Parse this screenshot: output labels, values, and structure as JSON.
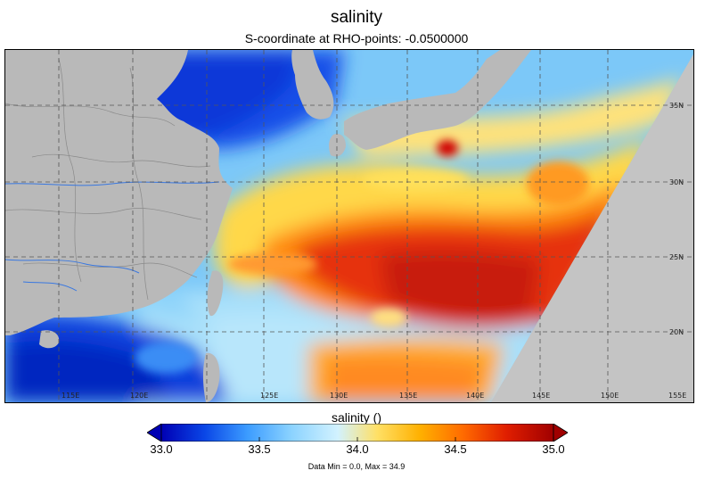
{
  "title": "salinity",
  "subtitle": "S-coordinate at RHO-points: -0.0500000",
  "map": {
    "lon_labels": [
      "115E",
      "120E",
      "125E",
      "130E",
      "135E",
      "140E",
      "145E",
      "150E",
      "155E"
    ],
    "lat_labels": [
      "35N",
      "30N",
      "25N",
      "20N"
    ]
  },
  "colorbar": {
    "title": "salinity ()",
    "ticks": [
      "33.0",
      "33.5",
      "34.0",
      "34.5",
      "35.0"
    ],
    "min": 33.0,
    "max": 35.0,
    "colors": [
      "#0000b4",
      "#0a46e6",
      "#3c9cff",
      "#8ad2ff",
      "#d2f2ff",
      "#ffe066",
      "#ffb000",
      "#ff6a00",
      "#e01e00",
      "#a00000"
    ]
  },
  "stats": "Data Min = 0.0, Max = 34.9"
}
